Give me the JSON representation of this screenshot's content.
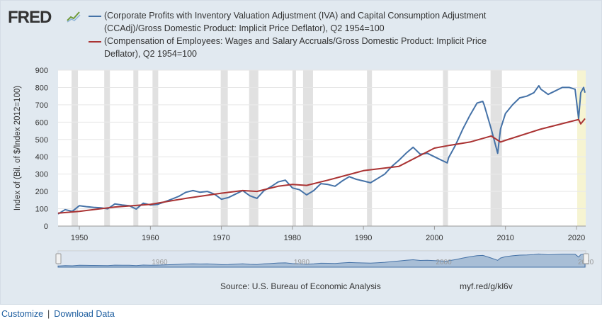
{
  "header": {
    "logo_text": "FRED",
    "logo_icon": "fred-chart-icon"
  },
  "chart_data": {
    "type": "line",
    "ylabel": "Index of (Bil. of $/Index 2012=100)",
    "xlabel": "",
    "ylim": [
      0,
      900
    ],
    "xlim": [
      1947,
      2021.3
    ],
    "yticks": [
      0,
      100,
      200,
      300,
      400,
      500,
      600,
      700,
      800,
      900
    ],
    "xticks": [
      1950,
      1960,
      1970,
      1980,
      1990,
      2000,
      2010,
      2020
    ],
    "grid": true,
    "legend_position": "top",
    "recessions": [
      [
        1948.9,
        1949.8
      ],
      [
        1953.5,
        1954.3
      ],
      [
        1957.6,
        1958.3
      ],
      [
        1960.3,
        1961.1
      ],
      [
        1969.9,
        1970.9
      ],
      [
        1973.9,
        1975.2
      ],
      [
        1980.0,
        1980.5
      ],
      [
        1981.5,
        1982.9
      ],
      [
        1990.5,
        1991.2
      ],
      [
        2001.2,
        2001.9
      ],
      [
        2007.9,
        2009.5
      ],
      [
        2020.1,
        2021.3
      ]
    ],
    "series": [
      {
        "name": "(Corporate Profits with Inventory Valuation Adjustment (IVA) and Capital Consumption Adjustment (CCAdj)/Gross Domestic Product: Implicit Price Deflator), Q2 1954=100",
        "color": "#4572a7",
        "x": [
          1947,
          1948,
          1949,
          1950,
          1951,
          1952,
          1953,
          1954,
          1955,
          1956,
          1957,
          1958,
          1959,
          1960,
          1961,
          1962,
          1963,
          1964,
          1965,
          1966,
          1967,
          1968,
          1969,
          1970,
          1971,
          1972,
          1973,
          1974,
          1975,
          1976,
          1977,
          1978,
          1979,
          1980,
          1981,
          1982,
          1983,
          1984,
          1985,
          1986,
          1987,
          1988,
          1989,
          1990,
          1991,
          1992,
          1993,
          1994,
          1995,
          1996,
          1997,
          1998,
          1999,
          2000,
          2001,
          2001.8,
          2002,
          2003,
          2004,
          2005,
          2006,
          2006.8,
          2007,
          2008,
          2008.9,
          2009.3,
          2010,
          2011,
          2012,
          2013,
          2014,
          2014.7,
          2015,
          2016,
          2017,
          2018,
          2019,
          2019.8,
          2020.3,
          2020.6,
          2021,
          2021.2
        ],
        "values": [
          70,
          95,
          85,
          118,
          112,
          108,
          105,
          100,
          128,
          122,
          118,
          98,
          132,
          122,
          125,
          140,
          155,
          172,
          195,
          205,
          195,
          200,
          185,
          155,
          165,
          185,
          205,
          175,
          160,
          205,
          228,
          255,
          265,
          220,
          210,
          180,
          205,
          245,
          240,
          230,
          260,
          285,
          270,
          260,
          250,
          275,
          300,
          345,
          380,
          420,
          455,
          415,
          420,
          400,
          380,
          365,
          395,
          470,
          560,
          640,
          710,
          720,
          700,
          560,
          420,
          560,
          650,
          700,
          740,
          750,
          770,
          810,
          790,
          760,
          780,
          800,
          800,
          790,
          620,
          770,
          800,
          770
        ]
      },
      {
        "name": "(Compensation of Employees: Wages and Salary Accruals/Gross Domestic Product: Implicit Price Deflator), Q2 1954=100",
        "color": "#aa3333",
        "x": [
          1947,
          1950,
          1955,
          1960,
          1965,
          1970,
          1973,
          1975,
          1978,
          1980,
          1982,
          1985,
          1990,
          1995,
          2000,
          2002,
          2005,
          2008,
          2009.3,
          2010,
          2015,
          2019.8,
          2020.3,
          2020.6,
          2021,
          2021.2
        ],
        "values": [
          75,
          85,
          110,
          125,
          160,
          190,
          205,
          200,
          230,
          240,
          235,
          265,
          320,
          345,
          450,
          465,
          485,
          520,
          485,
          495,
          560,
          610,
          615,
          590,
          610,
          620
        ]
      }
    ]
  },
  "navigator": {
    "labels": [
      "1960",
      "1980",
      "2000",
      "2020"
    ]
  },
  "source_text": "Source: U.S. Bureau of Economic Analysis",
  "shortlink": "myf.red/g/kl6v",
  "footer": {
    "customize_label": "Customize",
    "separator": "|",
    "download_label": "Download Data"
  }
}
